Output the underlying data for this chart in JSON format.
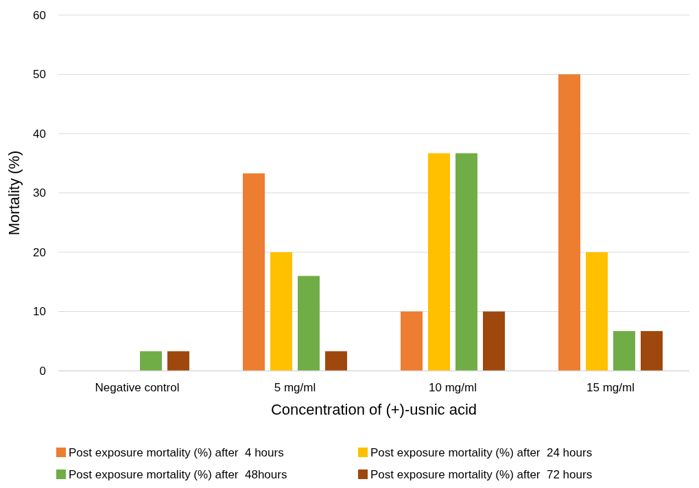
{
  "chart_data": {
    "type": "bar",
    "xlabel": "Concentration of (+)-usnic acid",
    "ylabel": "Mortality (%)",
    "categories": [
      "Negative control",
      "5 mg/ml",
      "10 mg/ml",
      "15 mg/ml"
    ],
    "series": [
      {
        "name": "Post exposure mortality (%) after  4 hours",
        "color": "#ed7d31",
        "values": [
          0,
          33.3,
          10,
          50
        ]
      },
      {
        "name": "Post exposure mortality (%) after  24 hours",
        "color": "#ffc000",
        "values": [
          0,
          20,
          36.7,
          20
        ]
      },
      {
        "name": "Post exposure mortality (%) after  48hours",
        "color": "#70ad47",
        "values": [
          3.3,
          16,
          36.7,
          6.7
        ]
      },
      {
        "name": "Post exposure mortality (%) after  72 hours",
        "color": "#9e480e",
        "values": [
          3.3,
          3.3,
          10,
          6.7
        ]
      }
    ],
    "ylim": [
      0,
      60
    ],
    "yticks": [
      0,
      10,
      20,
      30,
      40,
      50,
      60
    ],
    "grid": "y",
    "legend": "bottom"
  }
}
